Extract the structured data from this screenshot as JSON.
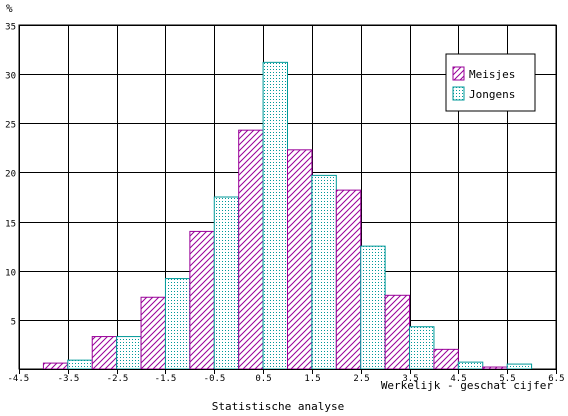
{
  "chart_data": {
    "type": "bar",
    "xlabel": "Werkelijk - geschat cijfer",
    "caption": "Statistische analyse",
    "ylabel": "%",
    "xlim": [
      -4.5,
      6.5
    ],
    "ylim": [
      0,
      35
    ],
    "x_ticks": [
      "-4.5",
      "-3.5",
      "-2.5",
      "-1.5",
      "-0.5",
      "0.5",
      "1.5",
      "2.5",
      "3.5",
      "4.5",
      "5.5",
      "6.5"
    ],
    "y_ticks": [
      "5",
      "10",
      "15",
      "20",
      "25",
      "30",
      "35"
    ],
    "bin_centers": [
      -3.5,
      -2.5,
      -1.5,
      -0.5,
      0.5,
      1.5,
      2.5,
      3.5,
      4.5,
      5.5
    ],
    "series": [
      {
        "name": "Meisjes",
        "pattern": "hatch",
        "color": "#990099",
        "values": [
          0.6,
          3.3,
          7.3,
          14.0,
          24.3,
          22.3,
          18.2,
          7.5,
          2.0,
          0.2
        ]
      },
      {
        "name": "Jongens",
        "pattern": "dots",
        "color": "#009999",
        "values": [
          0.9,
          3.3,
          9.2,
          17.5,
          31.2,
          19.7,
          12.5,
          4.3,
          0.7,
          0.5
        ]
      }
    ],
    "grid": true,
    "legend_position": "top-right"
  }
}
